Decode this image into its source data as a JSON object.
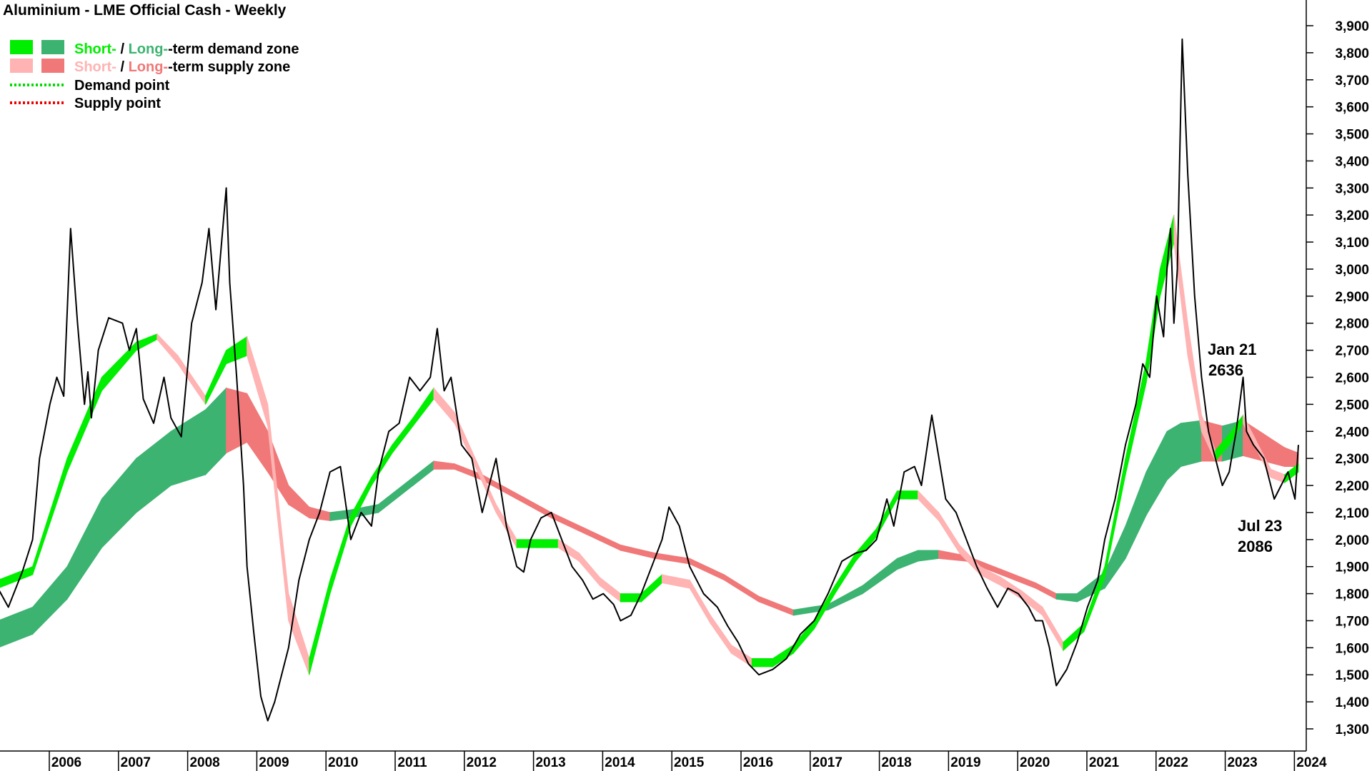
{
  "chart_data": {
    "type": "line",
    "title": "Aluminium - LME Official Cash - Weekly",
    "ylim": [
      1220,
      3960
    ],
    "xlim": [
      2005.0,
      2024.0
    ],
    "yticks": [
      "1,300",
      "1,400",
      "1,500",
      "1,600",
      "1,700",
      "1,800",
      "1,900",
      "2,000",
      "2,100",
      "2,200",
      "2,300",
      "2,400",
      "2,500",
      "2,600",
      "2,700",
      "2,800",
      "2,900",
      "3,000",
      "3,100",
      "3,200",
      "3,300",
      "3,400",
      "3,500",
      "3,600",
      "3,700",
      "3,800",
      "3,900"
    ],
    "xticks": [
      "2006",
      "2007",
      "2008",
      "2009",
      "2010",
      "2011",
      "2012",
      "2013",
      "2014",
      "2015",
      "2016",
      "2017",
      "2018",
      "2019",
      "2020",
      "2021",
      "2022",
      "2023",
      "2024"
    ],
    "legend": {
      "placement": "top-left",
      "items": [
        {
          "pre": "Short-",
          "sep": " / ",
          "mid": "Long-",
          "post": "-term demand zone",
          "color_short": "#00ee00",
          "color_long": "#3cb371"
        },
        {
          "pre": "Short-",
          "sep": " / ",
          "mid": "Long-",
          "post": "-term supply zone",
          "color_short": "#ffb3b3",
          "color_long": "#f07878"
        },
        {
          "label": "Demand point",
          "color": "#00dd00"
        },
        {
          "label": "Supply point",
          "color": "#ee0000"
        }
      ]
    },
    "annotations": [
      {
        "line1": "Jan 21",
        "line2": "2636",
        "x": 2023.0,
        "y": 2636
      },
      {
        "line1": "Jul 23",
        "line2": "2086",
        "x": 2023.5,
        "y": 2086
      }
    ],
    "colors": {
      "price": "#000000",
      "short_demand": "#00ee00",
      "long_demand": "#3cb371",
      "short_supply": "#ffb3b3",
      "long_supply": "#f07878",
      "crossover": "#f26522"
    },
    "series": [
      {
        "name": "price",
        "x": [
          2005.0,
          2005.15,
          2005.35,
          2005.5,
          2005.6,
          2005.75,
          2005.85,
          2005.95,
          2006.05,
          2006.15,
          2006.25,
          2006.3,
          2006.35,
          2006.45,
          2006.6,
          2006.8,
          2006.9,
          2007.0,
          2007.1,
          2007.25,
          2007.4,
          2007.5,
          2007.65,
          2007.8,
          2007.95,
          2008.05,
          2008.15,
          2008.3,
          2008.35,
          2008.45,
          2008.55,
          2008.6,
          2008.7,
          2008.8,
          2008.9,
          2009.0,
          2009.1,
          2009.2,
          2009.35,
          2009.5,
          2009.65,
          2009.8,
          2009.95,
          2010.1,
          2010.25,
          2010.4,
          2010.5,
          2010.65,
          2010.8,
          2010.95,
          2011.1,
          2011.25,
          2011.35,
          2011.45,
          2011.55,
          2011.7,
          2011.85,
          2012.0,
          2012.1,
          2012.2,
          2012.35,
          2012.5,
          2012.6,
          2012.7,
          2012.85,
          2013.0,
          2013.15,
          2013.3,
          2013.45,
          2013.6,
          2013.75,
          2013.9,
          2014.0,
          2014.15,
          2014.3,
          2014.45,
          2014.6,
          2014.7,
          2014.85,
          2015.0,
          2015.2,
          2015.4,
          2015.55,
          2015.7,
          2015.85,
          2016.0,
          2016.2,
          2016.4,
          2016.6,
          2016.8,
          2017.0,
          2017.2,
          2017.4,
          2017.55,
          2017.7,
          2017.85,
          2017.95,
          2018.1,
          2018.25,
          2018.35,
          2018.5,
          2018.7,
          2018.85,
          2019.0,
          2019.15,
          2019.3,
          2019.45,
          2019.6,
          2019.75,
          2019.9,
          2020.0,
          2020.1,
          2020.2,
          2020.3,
          2020.45,
          2020.6,
          2020.75,
          2020.9,
          2021.0,
          2021.15,
          2021.3,
          2021.45,
          2021.55,
          2021.65,
          2021.75,
          2021.85,
          2021.9,
          2021.95,
          2022.0,
          2022.05,
          2022.12,
          2022.2,
          2022.3,
          2022.4,
          2022.5,
          2022.6,
          2022.7,
          2022.8,
          2022.9,
          2023.0,
          2023.05,
          2023.15,
          2023.3,
          2023.45,
          2023.55,
          2023.65,
          2023.75,
          2023.8
        ],
        "values": [
          1820,
          1750,
          1880,
          2000,
          2300,
          2500,
          2600,
          2530,
          3150,
          2800,
          2500,
          2620,
          2450,
          2700,
          2820,
          2800,
          2700,
          2780,
          2520,
          2430,
          2600,
          2450,
          2380,
          2800,
          2950,
          3150,
          2850,
          3300,
          2950,
          2600,
          2200,
          1900,
          1650,
          1420,
          1330,
          1400,
          1500,
          1600,
          1850,
          2000,
          2100,
          2250,
          2270,
          2000,
          2100,
          2050,
          2250,
          2400,
          2430,
          2600,
          2550,
          2600,
          2780,
          2550,
          2600,
          2350,
          2300,
          2100,
          2200,
          2300,
          2050,
          1900,
          1880,
          2000,
          2080,
          2100,
          2000,
          1900,
          1850,
          1780,
          1800,
          1760,
          1700,
          1720,
          1800,
          1900,
          2000,
          2120,
          2050,
          1900,
          1800,
          1750,
          1680,
          1620,
          1540,
          1500,
          1520,
          1560,
          1650,
          1700,
          1800,
          1920,
          1950,
          1960,
          2000,
          2150,
          2050,
          2250,
          2270,
          2200,
          2460,
          2150,
          2100,
          2000,
          1900,
          1820,
          1750,
          1820,
          1800,
          1750,
          1700,
          1700,
          1600,
          1460,
          1520,
          1620,
          1750,
          1850,
          2000,
          2150,
          2350,
          2500,
          2650,
          2600,
          2900,
          2750,
          3000,
          3150,
          2800,
          3000,
          3850,
          3350,
          2900,
          2600,
          2400,
          2300,
          2200,
          2250,
          2400,
          2600,
          2400,
          2350,
          2300,
          2150,
          2200,
          2250,
          2150,
          2350
        ]
      },
      {
        "name": "short_top",
        "x": [
          2005.0,
          2005.5,
          2006.0,
          2006.5,
          2007.0,
          2007.3,
          2007.6,
          2008.0,
          2008.3,
          2008.6,
          2008.9,
          2009.2,
          2009.5,
          2009.8,
          2010.1,
          2010.4,
          2010.7,
          2011.0,
          2011.3,
          2011.6,
          2011.9,
          2012.2,
          2012.5,
          2012.8,
          2013.1,
          2013.4,
          2013.7,
          2014.0,
          2014.3,
          2014.6,
          2015.0,
          2015.3,
          2015.6,
          2015.9,
          2016.2,
          2016.5,
          2016.8,
          2017.1,
          2017.4,
          2017.7,
          2018.0,
          2018.3,
          2018.6,
          2018.9,
          2019.2,
          2019.5,
          2019.8,
          2020.1,
          2020.4,
          2020.7,
          2021.0,
          2021.3,
          2021.6,
          2021.8,
          2022.0,
          2022.2,
          2022.4,
          2022.6,
          2022.8,
          2023.0,
          2023.2,
          2023.4,
          2023.6,
          2023.8
        ],
        "values": [
          1850,
          1900,
          2300,
          2600,
          2730,
          2760,
          2680,
          2530,
          2700,
          2750,
          2500,
          1800,
          1560,
          1850,
          2090,
          2230,
          2350,
          2450,
          2560,
          2470,
          2300,
          2130,
          2000,
          2000,
          2000,
          1950,
          1860,
          1800,
          1800,
          1870,
          1850,
          1720,
          1610,
          1560,
          1560,
          1610,
          1700,
          1830,
          1950,
          2040,
          2180,
          2180,
          2100,
          1980,
          1900,
          1860,
          1810,
          1750,
          1620,
          1690,
          1900,
          2300,
          2660,
          3000,
          3200,
          2800,
          2460,
          2330,
          2390,
          2460,
          2360,
          2260,
          2240,
          2280
        ],
        "values2": [
          1820,
          1870,
          2250,
          2550,
          2700,
          2740,
          2650,
          2500,
          2650,
          2680,
          2420,
          1700,
          1500,
          1800,
          2050,
          2200,
          2320,
          2420,
          2520,
          2430,
          2270,
          2100,
          1970,
          1970,
          1970,
          1920,
          1830,
          1770,
          1770,
          1840,
          1820,
          1690,
          1580,
          1530,
          1530,
          1580,
          1670,
          1800,
          1920,
          2010,
          2150,
          2150,
          2070,
          1950,
          1870,
          1830,
          1780,
          1720,
          1590,
          1660,
          1860,
          2240,
          2580,
          2900,
          3100,
          2680,
          2400,
          2290,
          2350,
          2430,
          2330,
          2230,
          2210,
          2250
        ]
      },
      {
        "name": "long_top",
        "x": [
          2005.0,
          2005.5,
          2006.0,
          2006.5,
          2007.0,
          2007.5,
          2008.0,
          2008.3,
          2008.6,
          2008.9,
          2009.2,
          2009.5,
          2009.8,
          2010.1,
          2010.5,
          2011.0,
          2011.3,
          2011.6,
          2012.0,
          2012.5,
          2013.0,
          2013.5,
          2014.0,
          2014.5,
          2015.0,
          2015.5,
          2016.0,
          2016.5,
          2017.0,
          2017.5,
          2018.0,
          2018.3,
          2018.6,
          2019.0,
          2019.5,
          2020.0,
          2020.3,
          2020.6,
          2021.0,
          2021.3,
          2021.6,
          2021.9,
          2022.1,
          2022.4,
          2022.7,
          2023.0,
          2023.3,
          2023.6,
          2023.8
        ],
        "values": [
          1700,
          1750,
          1900,
          2150,
          2300,
          2400,
          2480,
          2560,
          2540,
          2400,
          2200,
          2120,
          2100,
          2110,
          2130,
          2230,
          2290,
          2280,
          2240,
          2170,
          2100,
          2040,
          1980,
          1950,
          1930,
          1870,
          1790,
          1740,
          1760,
          1830,
          1930,
          1960,
          1960,
          1940,
          1890,
          1840,
          1800,
          1800,
          1880,
          2050,
          2250,
          2400,
          2430,
          2440,
          2420,
          2440,
          2390,
          2340,
          2320
        ],
        "values2": [
          1600,
          1650,
          1780,
          1970,
          2100,
          2200,
          2240,
          2320,
          2360,
          2250,
          2130,
          2080,
          2070,
          2080,
          2100,
          2200,
          2260,
          2260,
          2220,
          2150,
          2080,
          2020,
          1960,
          1930,
          1910,
          1850,
          1770,
          1720,
          1740,
          1800,
          1890,
          1920,
          1930,
          1920,
          1870,
          1820,
          1780,
          1770,
          1820,
          1930,
          2090,
          2220,
          2270,
          2290,
          2290,
          2310,
          2290,
          2270,
          2270
        ]
      }
    ]
  }
}
